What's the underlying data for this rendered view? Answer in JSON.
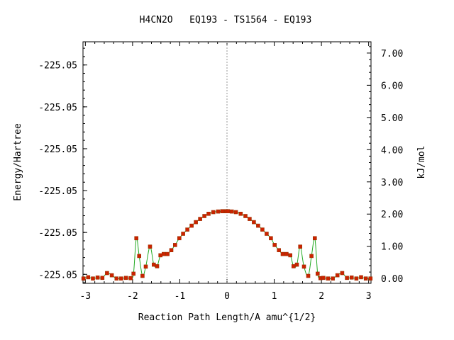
{
  "chart_data": {
    "type": "line",
    "title": "H4CN2O   EQ193 - TS1564 - EQ193",
    "xlabel": "Reaction Path Length/A amu^{1/2}",
    "ylabel_left": "Energy/Hartree",
    "ylabel_right": "kJ/mol",
    "xlim": [
      -3.05,
      3.05
    ],
    "ylim_kjmol": [
      -0.15,
      7.35
    ],
    "x_ticks": [
      "-3",
      "-2",
      "-1",
      "0",
      "1",
      "2",
      "3"
    ],
    "x_tick_values": [
      -3,
      -2,
      -1,
      0,
      1,
      2,
      3
    ],
    "left_ticks": [
      "-225.05",
      "-225.05",
      "-225.05",
      "-225.05",
      "-225.05",
      "-225.05"
    ],
    "left_tick_values_kjmol": [
      0.13,
      1.43,
      2.73,
      4.03,
      5.33,
      6.63
    ],
    "right_ticks": [
      "7.00",
      "6.00",
      "5.00",
      "4.00",
      "3.00",
      "2.00",
      "1.00",
      "0.00"
    ],
    "right_tick_values": [
      7,
      6,
      5,
      4,
      3,
      2,
      1,
      0
    ],
    "ts_marker_x": 0,
    "grid": false,
    "legend": "none",
    "colors": {
      "line": "#22aa22",
      "marker": "#cc2200",
      "marker_edge": "#993300",
      "vline": "#999999"
    },
    "series": [
      {
        "x": [
          -3.04,
          -2.94,
          -2.84,
          -2.74,
          -2.64,
          -2.54,
          -2.44,
          -2.34,
          -2.24,
          -2.14,
          -2.04,
          -1.98,
          -1.92,
          -1.86,
          -1.79,
          -1.72,
          -1.63,
          -1.55,
          -1.48,
          -1.41,
          -1.34,
          -1.26,
          -1.18,
          -1.1,
          -1.01,
          -0.93,
          -0.84,
          -0.75,
          -0.66,
          -0.57,
          -0.48,
          -0.39,
          -0.29,
          -0.19,
          -0.1,
          -0.02,
          0.02,
          0.1,
          0.19,
          0.29,
          0.39,
          0.48,
          0.57,
          0.66,
          0.75,
          0.84,
          0.93,
          1.01,
          1.1,
          1.18,
          1.26,
          1.34,
          1.41,
          1.48,
          1.55,
          1.63,
          1.72,
          1.79,
          1.86,
          1.92,
          1.98,
          2.04,
          2.14,
          2.24,
          2.34,
          2.44,
          2.54,
          2.64,
          2.74,
          2.84,
          2.94,
          3.04
        ],
        "y": [
          0.0,
          0.04,
          0.0,
          0.03,
          0.02,
          0.17,
          0.1,
          0.0,
          0.0,
          0.02,
          0.01,
          0.15,
          1.25,
          0.7,
          0.08,
          0.37,
          0.99,
          0.43,
          0.38,
          0.72,
          0.76,
          0.76,
          0.88,
          1.04,
          1.25,
          1.39,
          1.52,
          1.64,
          1.75,
          1.85,
          1.94,
          2.01,
          2.06,
          2.08,
          2.09,
          2.09,
          2.09,
          2.08,
          2.06,
          2.01,
          1.94,
          1.85,
          1.75,
          1.64,
          1.52,
          1.39,
          1.25,
          1.04,
          0.88,
          0.76,
          0.76,
          0.72,
          0.38,
          0.43,
          0.99,
          0.37,
          0.08,
          0.7,
          1.25,
          0.15,
          0.01,
          0.02,
          0.0,
          0.0,
          0.1,
          0.17,
          0.02,
          0.03,
          0.0,
          0.04,
          0.0,
          0.0
        ]
      }
    ]
  }
}
